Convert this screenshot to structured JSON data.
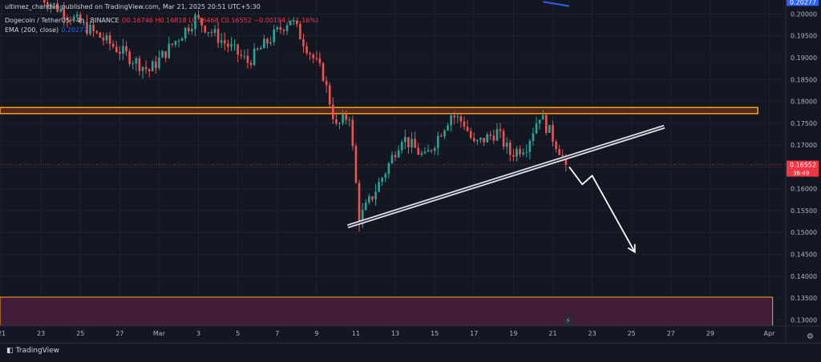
{
  "header": {
    "publisher": "ultimez_chandan published on TradingView.com, Mar 21, 2025 20:51 UTC+5:30",
    "symbol": "Dogecoin / TetherUS · 4h · BINANCE",
    "ohlc": "O0.16746 H0.16818 L0.16468 C0.16552 −0.00194 (−1.16%)",
    "ema_label": "EMA (200, close)",
    "ema_value": "0.20277"
  },
  "footer": {
    "logo_text": "TradingView"
  },
  "colors": {
    "background": "#131722",
    "up": "#26a69a",
    "down": "#ef5350",
    "zone": "#f7a21b",
    "ema": "#2962ff",
    "price_tag": "#f23645"
  },
  "chart_data": {
    "type": "candlestick",
    "title": "Dogecoin / TetherUS · 4h · BINANCE",
    "price_axis": {
      "ticks": [
        "0.20000",
        "0.19500",
        "0.19000",
        "0.18500",
        "0.18000",
        "0.17500",
        "0.17000",
        "0.16500",
        "0.16000",
        "0.15500",
        "0.15000",
        "0.14500",
        "0.14000",
        "0.13500",
        "0.13000"
      ],
      "range": [
        0.1286,
        0.2032
      ]
    },
    "time_axis": {
      "range": [
        "2025-02-20T22:00",
        "2025-04-01T20:00"
      ],
      "ticks": [
        {
          "label": "21",
          "date": "2025-02-21"
        },
        {
          "label": "23",
          "date": "2025-02-23"
        },
        {
          "label": "25",
          "date": "2025-02-25"
        },
        {
          "label": "27",
          "date": "2025-02-27"
        },
        {
          "label": "Mar",
          "date": "2025-03-01"
        },
        {
          "label": "3",
          "date": "2025-03-03"
        },
        {
          "label": "5",
          "date": "2025-03-05"
        },
        {
          "label": "7",
          "date": "2025-03-07"
        },
        {
          "label": "9",
          "date": "2025-03-09"
        },
        {
          "label": "11",
          "date": "2025-03-11"
        },
        {
          "label": "13",
          "date": "2025-03-13"
        },
        {
          "label": "15",
          "date": "2025-03-15"
        },
        {
          "label": "17",
          "date": "2025-03-17"
        },
        {
          "label": "19",
          "date": "2025-03-19"
        },
        {
          "label": "21",
          "date": "2025-03-21"
        },
        {
          "label": "23",
          "date": "2025-03-23"
        },
        {
          "label": "25",
          "date": "2025-03-25"
        },
        {
          "label": "27",
          "date": "2025-03-27"
        },
        {
          "label": "29",
          "date": "2025-03-29"
        },
        {
          "label": "Apr",
          "date": "2025-04-01"
        }
      ]
    },
    "price_labels": [
      {
        "price": 0.20277,
        "text": "0.20277",
        "color": "#2962ff"
      },
      {
        "price": 0.16552,
        "text": "0.16552",
        "sub": "38:49",
        "color": "#f23645"
      }
    ],
    "key_points": [
      {
        "date": "2025-02-23",
        "close": 0.204
      },
      {
        "date": "2025-02-28T12:00",
        "close": 0.187
      },
      {
        "date": "2025-03-02T20:00",
        "close": 0.199
      },
      {
        "date": "2025-03-05T12:00",
        "close": 0.189
      },
      {
        "date": "2025-03-07T16:00",
        "close": 0.199
      },
      {
        "date": "2025-03-09T08:00",
        "close": 0.186
      },
      {
        "date": "2025-03-10T00:00",
        "close": 0.174
      },
      {
        "date": "2025-03-10T16:00",
        "close": 0.177
      },
      {
        "date": "2025-03-11T04:00",
        "close": 0.153
      },
      {
        "date": "2025-03-11T16:00",
        "close": 0.157
      },
      {
        "date": "2025-03-12T12:00",
        "close": 0.164
      },
      {
        "date": "2025-03-13T08:00",
        "close": 0.172
      },
      {
        "date": "2025-03-14T12:00",
        "close": 0.167
      },
      {
        "date": "2025-03-15T20:00",
        "close": 0.177
      },
      {
        "date": "2025-03-16T12:00",
        "close": 0.175
      },
      {
        "date": "2025-03-17T00:00",
        "close": 0.17
      },
      {
        "date": "2025-03-18T04:00",
        "close": 0.173
      },
      {
        "date": "2025-03-18T20:00",
        "close": 0.168
      },
      {
        "date": "2025-03-19T16:00",
        "close": 0.17
      },
      {
        "date": "2025-03-20T08:00",
        "close": 0.177
      },
      {
        "date": "2025-03-20T20:00",
        "close": 0.173
      },
      {
        "date": "2025-03-21T08:00",
        "close": 0.169
      },
      {
        "date": "2025-03-21T16:00",
        "close": 0.16552
      }
    ],
    "resistance_zone": {
      "from": "2025-02-20T22:00",
      "to": "2025-03-31T10:00",
      "top": 0.1786,
      "bottom": 0.1772
    },
    "lower_zone": {
      "from": "2025-02-20T22:00",
      "to": "2025-04-01T04:00",
      "top": 0.1352,
      "bottom": 0.1286
    },
    "trendline": {
      "start": {
        "date": "2025-03-10T14:00",
        "price": 0.1514
      },
      "end": {
        "date": "2025-03-26T16:00",
        "price": 0.1742
      }
    },
    "projection_arrow": [
      {
        "date": "2025-03-21T20:00",
        "price": 0.165
      },
      {
        "date": "2025-03-22T12:00",
        "price": 0.161
      },
      {
        "date": "2025-03-23T00:00",
        "price": 0.163
      },
      {
        "date": "2025-03-25T04:00",
        "price": 0.1455
      }
    ],
    "ema200_segment": [
      {
        "date": "2025-03-20T12:00",
        "price": 0.2028
      },
      {
        "date": "2025-03-21T20:00",
        "price": 0.2018
      }
    ]
  }
}
